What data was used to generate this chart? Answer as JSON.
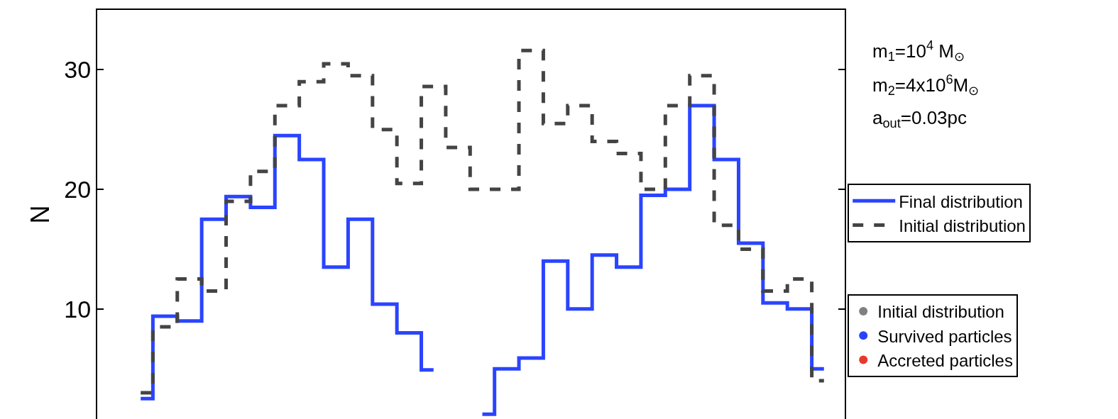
{
  "chart_data": {
    "type": "step",
    "ylabel": "N",
    "categories": [
      null,
      null,
      null,
      null,
      null,
      null,
      null,
      null,
      null,
      null,
      null,
      null,
      null,
      null,
      null,
      null,
      null,
      null,
      null,
      null,
      null,
      null,
      null,
      null,
      null,
      null,
      null,
      null,
      null
    ],
    "ylim": [
      0.8,
      35
    ],
    "yticks": [
      10,
      20,
      30
    ],
    "legend": "right",
    "series": [
      {
        "name": "Final distribution",
        "color": "#2a44ff",
        "line_style": "solid",
        "values": [
          2.5,
          9.4,
          9.0,
          17.5,
          19.4,
          18.5,
          24.5,
          22.5,
          13.5,
          17.5,
          10.4,
          8.0,
          4.9,
          null,
          1.2,
          5.0,
          5.9,
          14.0,
          10.0,
          14.5,
          13.5,
          19.5,
          20.0,
          27.0,
          22.5,
          15.5,
          10.5,
          10.0,
          5.0
        ]
      },
      {
        "name": "Initial distribution",
        "color": "#444444",
        "line_style": "dashed",
        "values": [
          3.0,
          8.5,
          12.5,
          11.5,
          19.0,
          21.5,
          27.0,
          29.0,
          30.5,
          29.5,
          25.0,
          20.5,
          28.6,
          23.5,
          20.0,
          20.0,
          31.6,
          25.5,
          27.0,
          24.0,
          23.0,
          20.0,
          27.0,
          29.5,
          17.0,
          15.0,
          11.5,
          12.5,
          4.0
        ]
      },
      {
        "name": "Initial distribution",
        "color": "#808080",
        "type": "scatter",
        "marker": "circle",
        "values": [
          null,
          null,
          null,
          null,
          null,
          null,
          null,
          null,
          null,
          null,
          null,
          null,
          null,
          null,
          null,
          null,
          null,
          null,
          null,
          null,
          null,
          null,
          null,
          null,
          null,
          null,
          null,
          null,
          null
        ]
      },
      {
        "name": "Survived particles",
        "color": "#2a44ff",
        "type": "scatter",
        "marker": "circle",
        "values": [
          null,
          null,
          null,
          null,
          null,
          null,
          null,
          null,
          null,
          null,
          null,
          null,
          null,
          null,
          null,
          null,
          null,
          null,
          null,
          null,
          null,
          null,
          null,
          null,
          null,
          null,
          null,
          null,
          null
        ]
      },
      {
        "name": "Accreted particles",
        "color": "#e8392c",
        "type": "scatter",
        "marker": "circle",
        "values": [
          null,
          null,
          null,
          null,
          null,
          null,
          null,
          null,
          null,
          null,
          null,
          null,
          null,
          null,
          null,
          null,
          null,
          null,
          null,
          null,
          null,
          null,
          null,
          null,
          null,
          null,
          null,
          null,
          null
        ]
      }
    ],
    "annotations": [
      "m$_{1}$=10$^{4}$ M$_{⊙}$",
      "m$_{2}$=4x10$^{6}$M$_{⊙}$",
      "a$_{out}$=0.03pc"
    ]
  }
}
